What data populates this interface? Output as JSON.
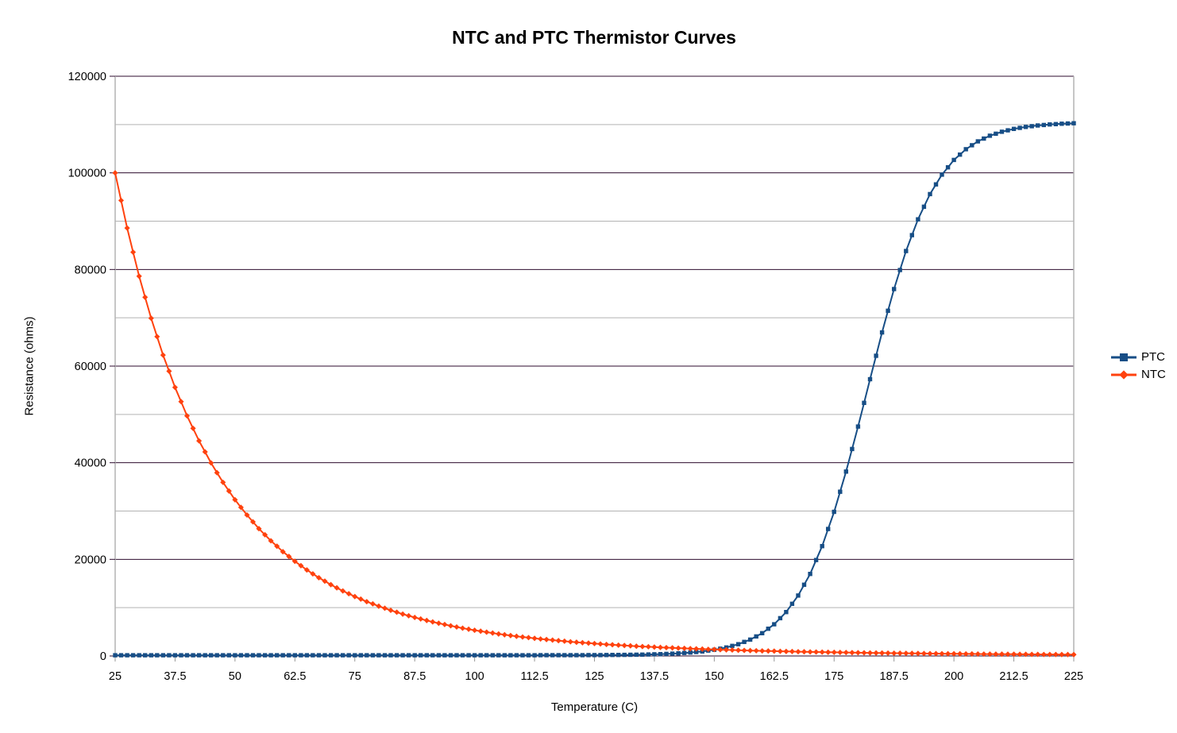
{
  "title": "NTC and PTC Thermistor Curves",
  "colors": {
    "background": "#ffffff",
    "text": "#000000",
    "major_grid": "#2d0b2e",
    "minor_grid": "#b3b3b3",
    "axis_line": "#b3b3b3",
    "tick_mark": "#999999"
  },
  "chart_data": {
    "type": "line",
    "title": "NTC and PTC Thermistor Curves",
    "xlabel": "Temperature (C)",
    "ylabel": "Resistance (ohms)",
    "xlim": [
      25,
      225
    ],
    "ylim": [
      0,
      120000
    ],
    "x_ticks": [
      25,
      37.5,
      50,
      62.5,
      75,
      87.5,
      100,
      112.5,
      125,
      137.5,
      150,
      162.5,
      175,
      187.5,
      200,
      212.5,
      225
    ],
    "y_ticks": [
      0,
      20000,
      40000,
      60000,
      80000,
      100000,
      120000
    ],
    "y_tick_step": 20000,
    "y_minor_step": 10000,
    "grid": "horizontal-major-and-minor",
    "legend_position": "right",
    "x": [
      25,
      27.5,
      30,
      32.5,
      35,
      37.5,
      40,
      42.5,
      45,
      47.5,
      50,
      52.5,
      55,
      57.5,
      60,
      62.5,
      65,
      67.5,
      70,
      72.5,
      75,
      77.5,
      80,
      82.5,
      85,
      87.5,
      90,
      92.5,
      95,
      97.5,
      100,
      102.5,
      105,
      107.5,
      110,
      112.5,
      115,
      117.5,
      120,
      122.5,
      125,
      127.5,
      130,
      132.5,
      135,
      137.5,
      140,
      142.5,
      145,
      147.5,
      150,
      152.5,
      155,
      157.5,
      160,
      162.5,
      165,
      167.5,
      170,
      172.5,
      175,
      177.5,
      180,
      182.5,
      185,
      187.5,
      190,
      192.5,
      195,
      197.5,
      200,
      202.5,
      205,
      207.5,
      210,
      212.5,
      215,
      217.5,
      220,
      222.5,
      225
    ],
    "series": [
      {
        "name": "PTC",
        "color": "#174e86",
        "marker": "square",
        "values": [
          150,
          150,
          150,
          150,
          150,
          150,
          150,
          150,
          150,
          150,
          150,
          150,
          150,
          150,
          150,
          150,
          150,
          150,
          150,
          150,
          150,
          150,
          150,
          150,
          150,
          150,
          150,
          150,
          150,
          151,
          151,
          151,
          152,
          153,
          154,
          155,
          158,
          161,
          166,
          172,
          182,
          196,
          215,
          244,
          284,
          341,
          423,
          540,
          706,
          942,
          1280,
          1757,
          2433,
          3385,
          4716,
          6561,
          9093,
          12502,
          16987,
          22740,
          29828,
          38177,
          47496,
          57292,
          66968,
          75950,
          83822,
          90378,
          95601,
          99636,
          102667,
          104897,
          106521,
          107683,
          108515,
          109103,
          109519,
          109812,
          110017,
          110162,
          110263
        ]
      },
      {
        "name": "NTC",
        "color": "#ff420e",
        "marker": "diamond",
        "values": [
          100000,
          88580,
          78610,
          69910,
          62280,
          55600,
          49710,
          44530,
          39960,
          35930,
          32340,
          29170,
          26350,
          23830,
          21590,
          19590,
          17800,
          16200,
          14760,
          13460,
          12300,
          11250,
          10310,
          9450,
          8670,
          7970,
          7350,
          6770,
          6240,
          5760,
          5330,
          4930,
          4560,
          4230,
          3930,
          3650,
          3400,
          3170,
          2950,
          2750,
          2560,
          2390,
          2240,
          2100,
          1960,
          1840,
          1720,
          1620,
          1520,
          1430,
          1340,
          1260,
          1190,
          1120,
          1060,
          1000,
          944,
          893,
          844,
          800,
          757,
          717,
          680,
          646,
          613,
          582,
          553,
          526,
          500,
          476,
          453,
          431,
          411,
          392,
          374,
          357,
          341,
          326,
          312,
          299,
          286
        ]
      }
    ]
  }
}
